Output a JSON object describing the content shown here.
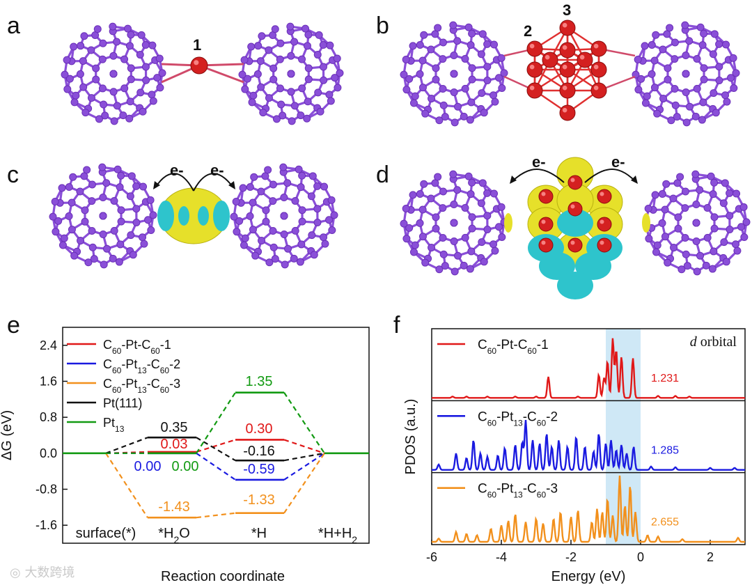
{
  "panel_letters": [
    "a",
    "b",
    "c",
    "d",
    "e",
    "f"
  ],
  "structure_labels": {
    "a_site": "1",
    "b_site2": "2",
    "b_site3": "3",
    "electron": "e-"
  },
  "colors": {
    "carbon": "#8a4fd8",
    "platinum": "#d42020",
    "yellow_iso": "#e6e02a",
    "cyan_iso": "#2ec4cc",
    "red": "#e01818",
    "blue": "#1a1ae0",
    "orange": "#f2901c",
    "black": "#111111",
    "green": "#129a12",
    "shade": "#cfe8f6"
  },
  "watermark": "大数跨境",
  "chart_data": [
    {
      "type": "line",
      "panel": "e",
      "ylabel": "ΔG (eV)",
      "xlabel": "Reaction coordinate",
      "ylim": [
        -2.0,
        2.8
      ],
      "yticks": [
        "2.4",
        "1.6",
        "0.8",
        "0.0",
        "-0.8",
        "-1.6"
      ],
      "categories": [
        "surface(*)",
        "*H2O",
        "*H",
        "*H+H2"
      ],
      "series": [
        {
          "name": "C60-Pt-C60-1",
          "color": "#e01818",
          "values": [
            0.0,
            0.03,
            0.3,
            0.0
          ],
          "labels": [
            "0.03",
            "0.30"
          ]
        },
        {
          "name": "C60-Pt13-C60-2",
          "color": "#1a1ae0",
          "values": [
            0.0,
            0.0,
            -0.59,
            0.0
          ],
          "labels": [
            "0.00",
            "-0.59"
          ]
        },
        {
          "name": "C60-Pt13-C60-3",
          "color": "#f2901c",
          "values": [
            0.0,
            -1.43,
            -1.33,
            0.0
          ],
          "labels": [
            "-1.43",
            "-1.33"
          ]
        },
        {
          "name": "Pt(111)",
          "color": "#111111",
          "values": [
            0.0,
            0.35,
            -0.16,
            0.0
          ],
          "labels": [
            "0.35",
            "-0.16"
          ]
        },
        {
          "name": "Pt13",
          "color": "#129a12",
          "values": [
            0.0,
            0.0,
            1.35,
            0.0
          ],
          "labels": [
            "0.00",
            "1.35"
          ]
        }
      ]
    },
    {
      "type": "line",
      "panel": "f",
      "ylabel": "PDOS (a.u.)",
      "xlabel": "Energy (eV)",
      "xlim": [
        -6,
        3
      ],
      "xticks": [
        "-6",
        "-4",
        "-2",
        "0",
        "2"
      ],
      "annotation": "d orbital",
      "shaded_range": [
        -1,
        0
      ],
      "series": [
        {
          "name": "C60-Pt-C60-1",
          "color": "#e01818",
          "value_label": "1.231",
          "peaks": [
            [
              -5.4,
              0.02
            ],
            [
              -5.0,
              0.02
            ],
            [
              -4.4,
              0.02
            ],
            [
              -3.6,
              0.02
            ],
            [
              -3.0,
              0.02
            ],
            [
              -2.65,
              0.32
            ],
            [
              -1.8,
              0.02
            ],
            [
              -1.2,
              0.35
            ],
            [
              -1.05,
              0.3
            ],
            [
              -0.95,
              0.55
            ],
            [
              -0.8,
              0.9
            ],
            [
              -0.7,
              0.72
            ],
            [
              -0.55,
              0.62
            ],
            [
              -0.22,
              0.6
            ],
            [
              0.5,
              0.03
            ],
            [
              1.0,
              0.03
            ],
            [
              1.4,
              0.02
            ]
          ]
        },
        {
          "name": "C60-Pt13-C60-2",
          "color": "#1a1ae0",
          "value_label": "1.285",
          "peaks": [
            [
              -5.8,
              0.08
            ],
            [
              -5.3,
              0.25
            ],
            [
              -5.0,
              0.18
            ],
            [
              -4.8,
              0.45
            ],
            [
              -4.6,
              0.25
            ],
            [
              -4.4,
              0.2
            ],
            [
              -4.1,
              0.22
            ],
            [
              -3.9,
              0.33
            ],
            [
              -3.6,
              0.38
            ],
            [
              -3.4,
              0.42
            ],
            [
              -3.3,
              0.75
            ],
            [
              -3.1,
              0.45
            ],
            [
              -2.9,
              0.4
            ],
            [
              -2.7,
              0.55
            ],
            [
              -2.55,
              0.35
            ],
            [
              -2.35,
              0.45
            ],
            [
              -2.1,
              0.35
            ],
            [
              -1.85,
              0.5
            ],
            [
              -1.6,
              0.35
            ],
            [
              -1.35,
              0.28
            ],
            [
              -1.2,
              0.55
            ],
            [
              -1.0,
              0.4
            ],
            [
              -0.85,
              0.45
            ],
            [
              -0.7,
              0.3
            ],
            [
              -0.55,
              0.38
            ],
            [
              -0.4,
              0.25
            ],
            [
              -0.2,
              0.35
            ],
            [
              0.3,
              0.05
            ],
            [
              1.0,
              0.04
            ],
            [
              2.0,
              0.03
            ],
            [
              2.7,
              0.03
            ]
          ]
        },
        {
          "name": "C60-Pt13-C60-3",
          "color": "#f2901c",
          "value_label": "2.655",
          "peaks": [
            [
              -5.8,
              0.05
            ],
            [
              -5.3,
              0.15
            ],
            [
              -5.0,
              0.12
            ],
            [
              -4.7,
              0.1
            ],
            [
              -4.3,
              0.2
            ],
            [
              -4.0,
              0.25
            ],
            [
              -3.8,
              0.32
            ],
            [
              -3.6,
              0.42
            ],
            [
              -3.3,
              0.3
            ],
            [
              -3.0,
              0.35
            ],
            [
              -2.8,
              0.28
            ],
            [
              -2.5,
              0.35
            ],
            [
              -2.3,
              0.45
            ],
            [
              -2.0,
              0.38
            ],
            [
              -1.8,
              0.48
            ],
            [
              -1.4,
              0.3
            ],
            [
              -1.25,
              0.5
            ],
            [
              -1.1,
              0.45
            ],
            [
              -0.95,
              0.65
            ],
            [
              -0.8,
              0.4
            ],
            [
              -0.6,
              1.0
            ],
            [
              -0.45,
              0.55
            ],
            [
              -0.3,
              0.85
            ],
            [
              -0.15,
              0.45
            ],
            [
              0.2,
              0.1
            ],
            [
              0.5,
              0.08
            ],
            [
              1.2,
              0.04
            ],
            [
              2.8,
              0.06
            ]
          ]
        }
      ]
    }
  ]
}
